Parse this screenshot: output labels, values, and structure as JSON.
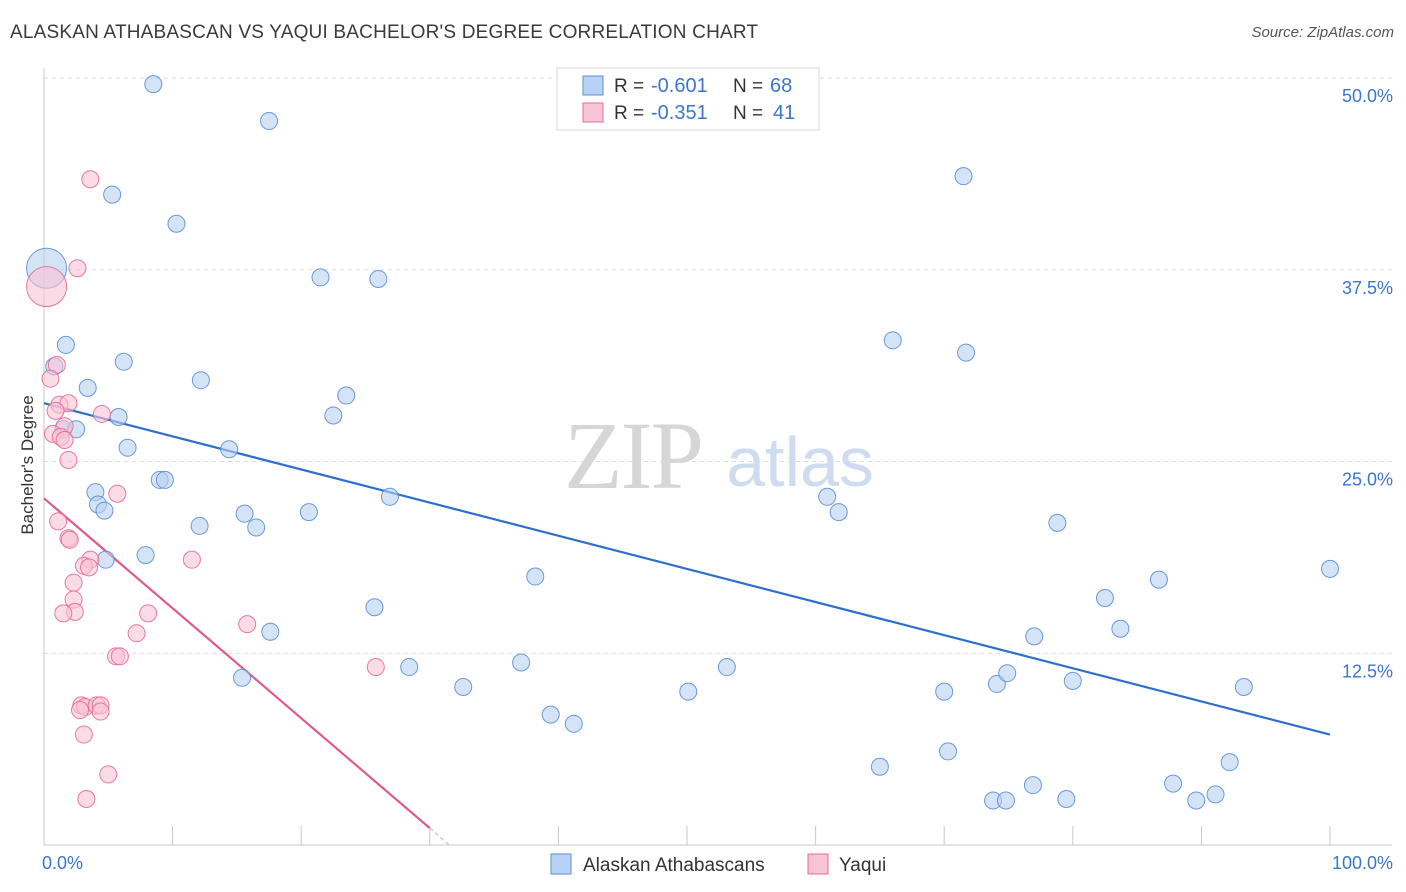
{
  "chart_data": {
    "type": "scatter",
    "title": "ALASKAN ATHABASCAN VS YAQUI BACHELOR'S DEGREE CORRELATION CHART",
    "source": "Source: ZipAtlas.com",
    "ylabel": "Bachelor's Degree",
    "xlim": [
      0,
      100
    ],
    "ylim": [
      0,
      52
    ],
    "x_tick_labels": [
      "0.0%",
      "100.0%"
    ],
    "y_ticks": [
      12.5,
      25.0,
      37.5,
      50.0
    ],
    "y_tick_labels": [
      "12.5%",
      "25.0%",
      "37.5%",
      "50.0%"
    ],
    "watermark": {
      "zip": "ZIP",
      "atlas": "atlas"
    },
    "legend_stats": [
      {
        "r_label": "R =",
        "r_value": "-0.601",
        "n_label": "N =",
        "n_value": "68"
      },
      {
        "r_label": "R =",
        "r_value": "-0.351",
        "n_label": "N =",
        "n_value": "41"
      }
    ],
    "series": [
      {
        "name": "Alaskan Athabascans",
        "color": "#5b8fd6",
        "fill": "#b9d1f2",
        "trend": {
          "x": [
            0,
            100
          ],
          "y": [
            28.8,
            7.2
          ]
        },
        "points": [
          {
            "x": 0.2,
            "y": 37.6,
            "big": true
          },
          {
            "x": 8.5,
            "y": 49.6
          },
          {
            "x": 17.5,
            "y": 47.2
          },
          {
            "x": 5.3,
            "y": 42.4
          },
          {
            "x": 10.3,
            "y": 40.5
          },
          {
            "x": 71.5,
            "y": 43.6
          },
          {
            "x": 21.5,
            "y": 37.0
          },
          {
            "x": 26.0,
            "y": 36.9
          },
          {
            "x": 1.7,
            "y": 32.6
          },
          {
            "x": 6.2,
            "y": 31.5
          },
          {
            "x": 0.8,
            "y": 31.2
          },
          {
            "x": 12.2,
            "y": 30.3
          },
          {
            "x": 3.4,
            "y": 29.8
          },
          {
            "x": 23.5,
            "y": 29.3
          },
          {
            "x": 5.8,
            "y": 27.9
          },
          {
            "x": 22.5,
            "y": 28.0
          },
          {
            "x": 1.5,
            "y": 27.1
          },
          {
            "x": 2.5,
            "y": 27.1
          },
          {
            "x": 66.0,
            "y": 32.9
          },
          {
            "x": 71.7,
            "y": 32.1
          },
          {
            "x": 6.5,
            "y": 25.9
          },
          {
            "x": 14.4,
            "y": 25.8
          },
          {
            "x": 9.0,
            "y": 23.8
          },
          {
            "x": 9.4,
            "y": 23.8
          },
          {
            "x": 4.0,
            "y": 23.0
          },
          {
            "x": 4.2,
            "y": 22.2
          },
          {
            "x": 4.7,
            "y": 21.8
          },
          {
            "x": 26.9,
            "y": 22.7
          },
          {
            "x": 60.9,
            "y": 22.7
          },
          {
            "x": 61.8,
            "y": 21.7
          },
          {
            "x": 15.6,
            "y": 21.6
          },
          {
            "x": 20.6,
            "y": 21.7
          },
          {
            "x": 12.1,
            "y": 20.8
          },
          {
            "x": 16.5,
            "y": 20.7
          },
          {
            "x": 78.8,
            "y": 21.0
          },
          {
            "x": 4.8,
            "y": 18.6
          },
          {
            "x": 7.9,
            "y": 18.9
          },
          {
            "x": 38.2,
            "y": 17.5
          },
          {
            "x": 86.7,
            "y": 17.3
          },
          {
            "x": 100.0,
            "y": 18.0
          },
          {
            "x": 82.5,
            "y": 16.1
          },
          {
            "x": 25.7,
            "y": 15.5
          },
          {
            "x": 17.6,
            "y": 13.9
          },
          {
            "x": 83.7,
            "y": 14.1
          },
          {
            "x": 77.0,
            "y": 13.6
          },
          {
            "x": 28.4,
            "y": 11.6
          },
          {
            "x": 37.1,
            "y": 11.9
          },
          {
            "x": 53.1,
            "y": 11.6
          },
          {
            "x": 15.4,
            "y": 10.9
          },
          {
            "x": 32.6,
            "y": 10.3
          },
          {
            "x": 50.1,
            "y": 10.0
          },
          {
            "x": 70.0,
            "y": 10.0
          },
          {
            "x": 74.1,
            "y": 10.5
          },
          {
            "x": 74.9,
            "y": 11.2
          },
          {
            "x": 80.0,
            "y": 10.7
          },
          {
            "x": 93.3,
            "y": 10.3
          },
          {
            "x": 39.4,
            "y": 8.5
          },
          {
            "x": 41.2,
            "y": 7.9
          },
          {
            "x": 70.3,
            "y": 6.1
          },
          {
            "x": 65.0,
            "y": 5.1
          },
          {
            "x": 92.2,
            "y": 5.4
          },
          {
            "x": 76.9,
            "y": 3.9
          },
          {
            "x": 79.5,
            "y": 3.0
          },
          {
            "x": 87.8,
            "y": 4.0
          },
          {
            "x": 73.8,
            "y": 2.9
          },
          {
            "x": 74.8,
            "y": 2.9
          },
          {
            "x": 89.6,
            "y": 2.9
          },
          {
            "x": 91.1,
            "y": 3.3
          }
        ]
      },
      {
        "name": "Yaqui",
        "color": "#e66d96",
        "fill": "#f8c3d4",
        "trend": {
          "x": [
            0,
            30
          ],
          "y": [
            22.6,
            1.1
          ]
        },
        "trend_ext": {
          "x": [
            30,
            31.5
          ],
          "y": [
            1.1,
            0
          ]
        },
        "points": [
          {
            "x": 0.2,
            "y": 36.4,
            "big": true
          },
          {
            "x": 3.6,
            "y": 43.4
          },
          {
            "x": 2.6,
            "y": 37.6
          },
          {
            "x": 1.0,
            "y": 31.3
          },
          {
            "x": 0.5,
            "y": 30.4
          },
          {
            "x": 1.2,
            "y": 28.7
          },
          {
            "x": 1.9,
            "y": 28.8
          },
          {
            "x": 0.9,
            "y": 28.3
          },
          {
            "x": 4.5,
            "y": 28.1
          },
          {
            "x": 1.6,
            "y": 27.3
          },
          {
            "x": 0.7,
            "y": 26.8
          },
          {
            "x": 1.3,
            "y": 26.6
          },
          {
            "x": 1.6,
            "y": 26.4
          },
          {
            "x": 1.9,
            "y": 25.1
          },
          {
            "x": 5.7,
            "y": 22.9
          },
          {
            "x": 1.1,
            "y": 21.1
          },
          {
            "x": 1.9,
            "y": 20.0
          },
          {
            "x": 2.0,
            "y": 19.9
          },
          {
            "x": 3.6,
            "y": 18.6
          },
          {
            "x": 11.5,
            "y": 18.6
          },
          {
            "x": 3.1,
            "y": 18.2
          },
          {
            "x": 3.5,
            "y": 18.1
          },
          {
            "x": 2.3,
            "y": 17.1
          },
          {
            "x": 2.3,
            "y": 16.0
          },
          {
            "x": 2.4,
            "y": 15.2
          },
          {
            "x": 1.5,
            "y": 15.1
          },
          {
            "x": 8.1,
            "y": 15.1
          },
          {
            "x": 15.8,
            "y": 14.4
          },
          {
            "x": 7.2,
            "y": 13.8
          },
          {
            "x": 5.6,
            "y": 12.3
          },
          {
            "x": 5.9,
            "y": 12.3
          },
          {
            "x": 25.8,
            "y": 11.6
          },
          {
            "x": 2.9,
            "y": 9.1
          },
          {
            "x": 3.2,
            "y": 9.0
          },
          {
            "x": 4.1,
            "y": 9.1
          },
          {
            "x": 4.4,
            "y": 9.1
          },
          {
            "x": 2.8,
            "y": 8.8
          },
          {
            "x": 4.4,
            "y": 8.7
          },
          {
            "x": 3.1,
            "y": 7.2
          },
          {
            "x": 5.0,
            "y": 4.6
          },
          {
            "x": 3.3,
            "y": 3.0
          }
        ]
      }
    ]
  }
}
